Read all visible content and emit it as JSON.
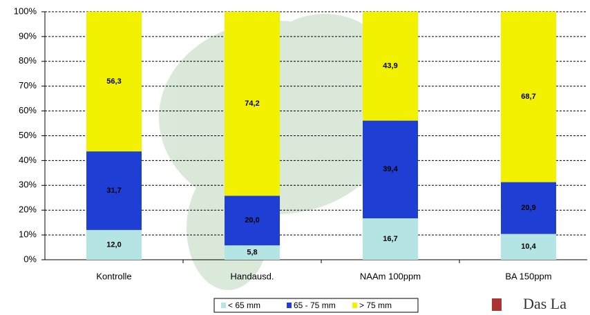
{
  "chart_data": {
    "type": "stacked_bar",
    "categories": [
      "Kontrolle",
      "Handausd.",
      "NAAm 100ppm",
      "BA 150ppm"
    ],
    "series": [
      {
        "name": "< 65 mm",
        "color": "#b4e4e4",
        "values": [
          12.0,
          5.8,
          16.7,
          10.4
        ],
        "value_labels": [
          "12,0",
          "5,8",
          "16,7",
          "10,4"
        ]
      },
      {
        "name": "65 - 75 mm",
        "color": "#1f3fd4",
        "values": [
          31.7,
          20.0,
          39.4,
          20.9
        ],
        "value_labels": [
          "31,7",
          "20,0",
          "39,4",
          "20,9"
        ]
      },
      {
        "name": "> 75 mm",
        "color": "#f2f200",
        "values": [
          56.3,
          74.2,
          43.9,
          68.7
        ],
        "value_labels": [
          "56,3",
          "74,2",
          "43,9",
          "68,7"
        ]
      }
    ],
    "ylim": [
      0,
      100
    ],
    "yticks": [
      {
        "value": 0,
        "label": "0%"
      },
      {
        "value": 10,
        "label": "10%"
      },
      {
        "value": 20,
        "label": "20%"
      },
      {
        "value": 30,
        "label": "30%"
      },
      {
        "value": 40,
        "label": "40%"
      },
      {
        "value": 50,
        "label": "50%"
      },
      {
        "value": 60,
        "label": "60%"
      },
      {
        "value": 70,
        "label": "70%"
      },
      {
        "value": 80,
        "label": "80%"
      },
      {
        "value": 90,
        "label": "90%"
      },
      {
        "value": 100,
        "label": "100%"
      }
    ],
    "grid": true,
    "legend": "bottom",
    "logo_text": "Das La"
  }
}
